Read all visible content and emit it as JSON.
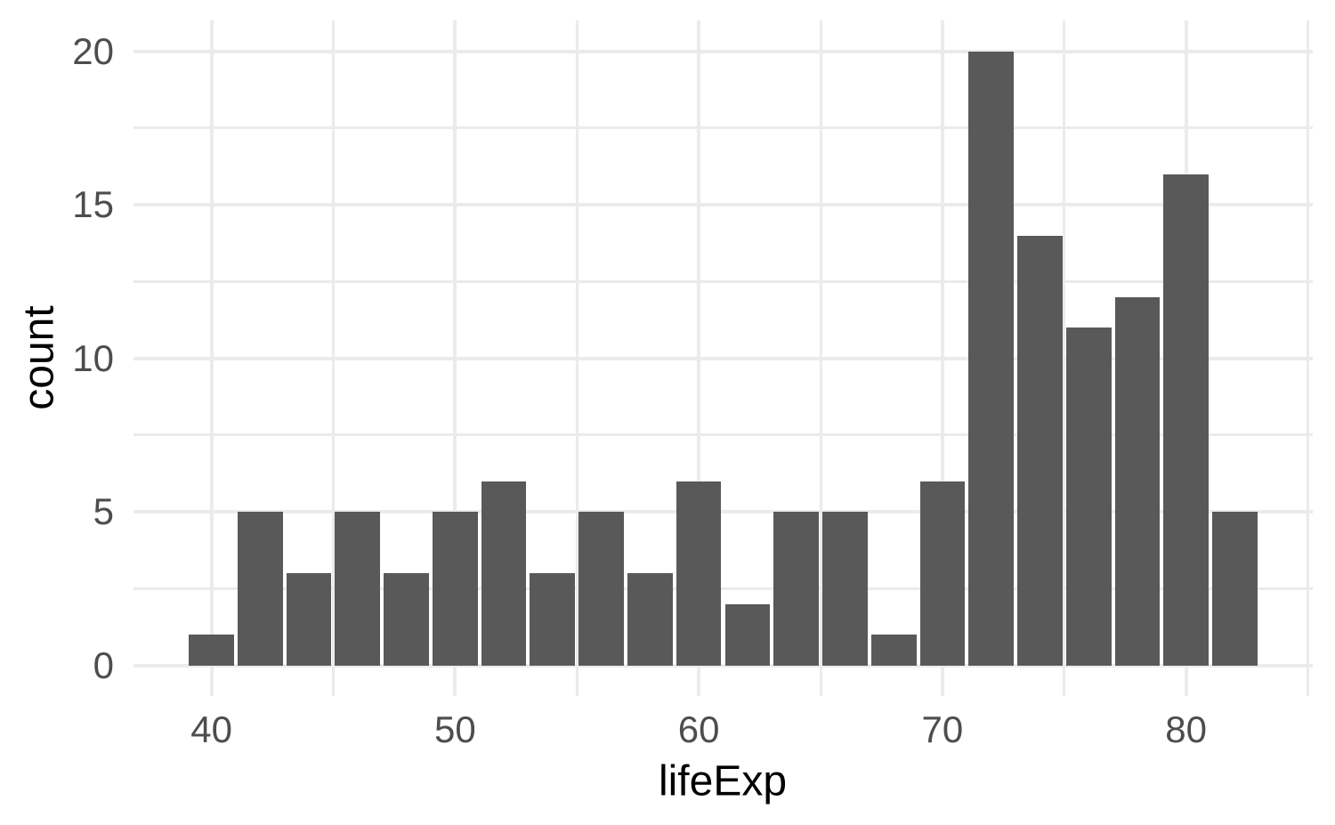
{
  "chart_data": {
    "type": "bar",
    "subtype": "histogram",
    "title": "",
    "xlabel": "lifeExp",
    "ylabel": "count",
    "bin_start": 39,
    "bin_width": 2,
    "counts": [
      1,
      5,
      3,
      5,
      3,
      5,
      6,
      3,
      5,
      3,
      6,
      2,
      5,
      5,
      1,
      6,
      20,
      14,
      11,
      12,
      16,
      5
    ],
    "x_ticks": [
      40,
      50,
      60,
      70,
      80
    ],
    "y_ticks": [
      0,
      5,
      10,
      15,
      20
    ],
    "x_minor_gridlines": [
      45,
      55,
      65,
      75,
      85
    ],
    "y_minor_gridlines": [
      2.5,
      7.5,
      12.5,
      17.5
    ],
    "xlim": [
      36.8,
      85.2
    ],
    "ylim": [
      -1,
      21
    ],
    "grid": "on",
    "legend": "none",
    "colors": {
      "bar_fill": "#595959",
      "gridline": "#EBEBEB",
      "tick_label": "#4D4D4D",
      "axis_title": "#000000",
      "background": "#FFFFFF"
    }
  }
}
